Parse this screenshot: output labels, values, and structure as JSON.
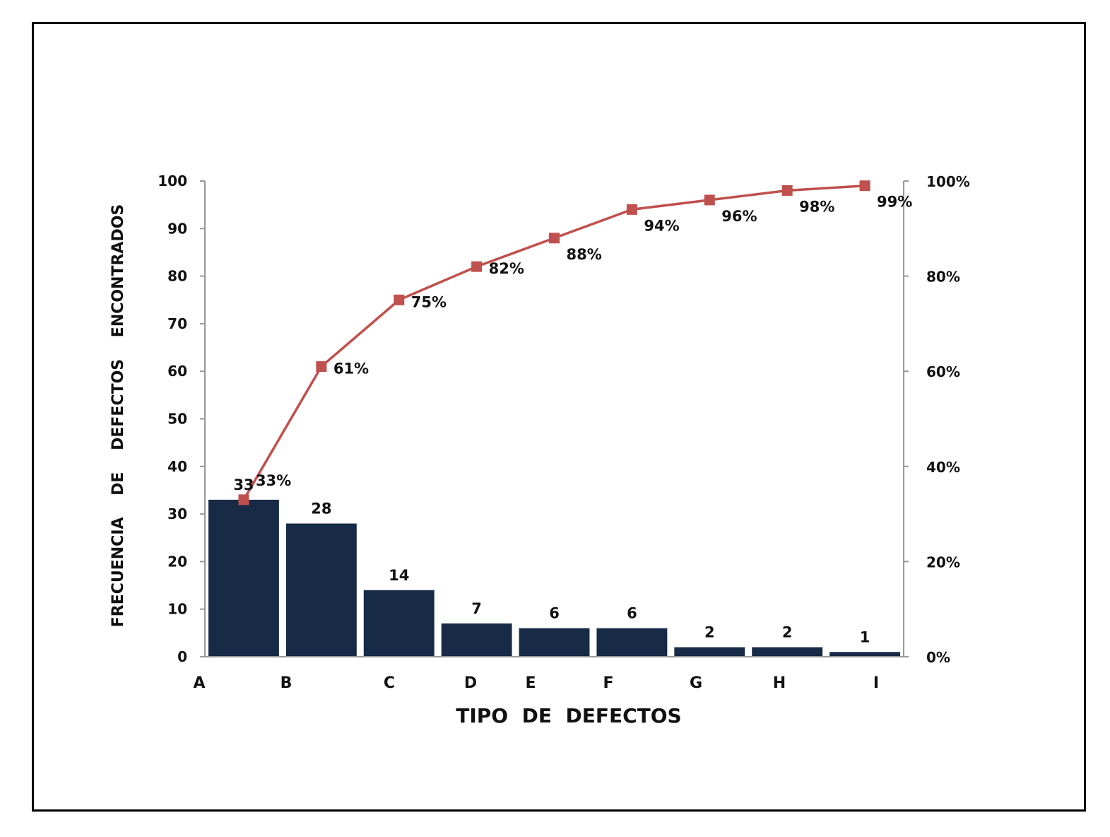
{
  "chart_data": {
    "type": "bar",
    "categories": [
      "A",
      "B",
      "C",
      "D",
      "E",
      "F",
      "G",
      "H",
      "I"
    ],
    "series": [
      {
        "type": "bar",
        "values": [
          33,
          28,
          14,
          7,
          6,
          6,
          2,
          2,
          1
        ]
      },
      {
        "type": "line",
        "axis": "right",
        "values": [
          33,
          61,
          75,
          82,
          88,
          94,
          96,
          98,
          99
        ],
        "labels": [
          "33%",
          "61%",
          "75%",
          "82%",
          "88%",
          "94%",
          "96%",
          "98%",
          "99%"
        ]
      }
    ],
    "xlabel": "TIPO  DE  DEFECTOS",
    "ylabel": "FRECUENCIA    DE    DEFECTOS    ENCONTRADOS",
    "ylim": [
      0,
      100
    ],
    "y_ticks": [
      "0",
      "10",
      "20",
      "30",
      "40",
      "50",
      "60",
      "70",
      "80",
      "90",
      "100"
    ],
    "y2lim": [
      0,
      100
    ],
    "y2_ticks": [
      "0%",
      "20%",
      "40%",
      "60%",
      "80%",
      "100%"
    ],
    "grid": false,
    "colors": {
      "bars": "#172A46",
      "line": "#C0504D",
      "axis": "#999999"
    }
  }
}
